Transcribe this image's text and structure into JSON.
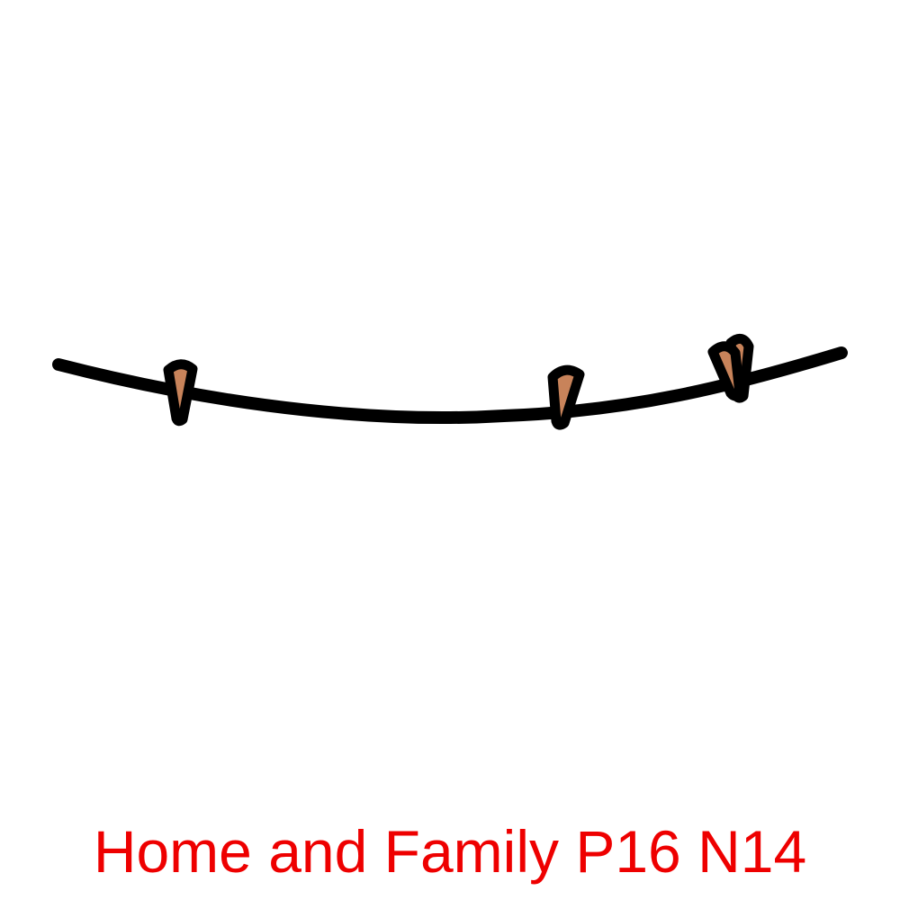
{
  "caption": {
    "text": "Home and Family P16 N14",
    "color": "#ee0000"
  },
  "illustration": {
    "subject": "clothesline-with-clothespins",
    "line_color": "#000000",
    "clothespin_fill": "#c8835a",
    "outline_color": "#000000",
    "clothespin_count": 4
  }
}
